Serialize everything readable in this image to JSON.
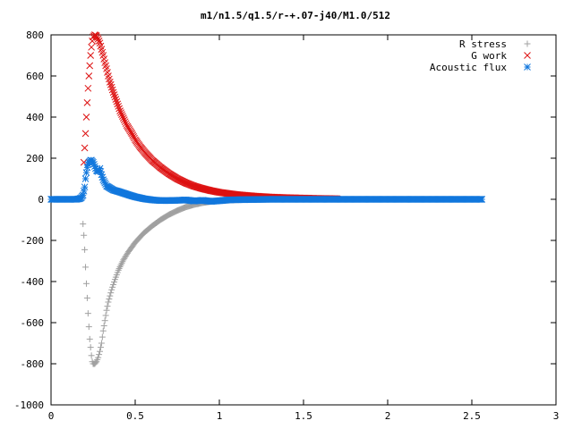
{
  "chart_data": {
    "type": "scatter",
    "title": "m1/n1.5/q1.5/r-+.07-j40/M1.0/512",
    "xlabel": "",
    "ylabel": "",
    "xlim": [
      0,
      3
    ],
    "ylim": [
      -1000,
      800
    ],
    "xticks": [
      {
        "value": 0,
        "label": "0"
      },
      {
        "value": 0.5,
        "label": "0.5"
      },
      {
        "value": 1,
        "label": "1"
      },
      {
        "value": 1.5,
        "label": "1.5"
      },
      {
        "value": 2,
        "label": "2"
      },
      {
        "value": 2.5,
        "label": "2.5"
      },
      {
        "value": 3,
        "label": "3"
      }
    ],
    "yticks": [
      {
        "value": -1000,
        "label": "-1000"
      },
      {
        "value": -800,
        "label": "-800"
      },
      {
        "value": -600,
        "label": "-600"
      },
      {
        "value": -400,
        "label": "-400"
      },
      {
        "value": -200,
        "label": "-200"
      },
      {
        "value": 0,
        "label": "0"
      },
      {
        "value": 200,
        "label": "200"
      },
      {
        "value": 400,
        "label": "400"
      },
      {
        "value": 600,
        "label": "600"
      },
      {
        "value": 800,
        "label": "800"
      }
    ],
    "grid": false,
    "legend_position": "top-right",
    "series": [
      {
        "name": "R stress",
        "marker": "plus",
        "color": "#a0a0a0",
        "points": [
          [
            0.19,
            -120
          ],
          [
            0.195,
            -175
          ],
          [
            0.2,
            -245
          ],
          [
            0.205,
            -330
          ],
          [
            0.21,
            -410
          ],
          [
            0.215,
            -480
          ],
          [
            0.22,
            -555
          ],
          [
            0.225,
            -620
          ],
          [
            0.23,
            -680
          ],
          [
            0.235,
            -720
          ],
          [
            0.24,
            -760
          ],
          [
            0.245,
            -790
          ],
          [
            0.25,
            -800
          ],
          [
            0.26,
            -800
          ],
          [
            0.27,
            -790
          ],
          [
            0.28,
            -770
          ],
          [
            0.29,
            -740
          ],
          [
            0.3,
            -700
          ],
          [
            0.31,
            -640
          ],
          [
            0.32,
            -590
          ],
          [
            0.33,
            -540
          ],
          [
            0.34,
            -500
          ],
          [
            0.36,
            -440
          ],
          [
            0.38,
            -390
          ],
          [
            0.4,
            -345
          ],
          [
            0.43,
            -295
          ],
          [
            0.46,
            -255
          ],
          [
            0.5,
            -210
          ],
          [
            0.55,
            -165
          ],
          [
            0.6,
            -130
          ],
          [
            0.65,
            -100
          ],
          [
            0.7,
            -75
          ],
          [
            0.75,
            -55
          ],
          [
            0.8,
            -38
          ],
          [
            0.85,
            -26
          ],
          [
            0.9,
            -17
          ],
          [
            0.95,
            -11
          ],
          [
            1.0,
            -7
          ],
          [
            1.1,
            -3
          ],
          [
            1.2,
            -1
          ],
          [
            1.3,
            0
          ],
          [
            1.5,
            0
          ],
          [
            1.7,
            0
          ],
          [
            2.0,
            0
          ],
          [
            2.3,
            0
          ],
          [
            2.55,
            0
          ]
        ]
      },
      {
        "name": "G work",
        "marker": "cross",
        "color": "#dd1111",
        "points": [
          [
            0.195,
            180
          ],
          [
            0.2,
            250
          ],
          [
            0.205,
            320
          ],
          [
            0.21,
            400
          ],
          [
            0.215,
            470
          ],
          [
            0.22,
            540
          ],
          [
            0.225,
            600
          ],
          [
            0.23,
            650
          ],
          [
            0.235,
            700
          ],
          [
            0.24,
            740
          ],
          [
            0.245,
            770
          ],
          [
            0.25,
            790
          ],
          [
            0.26,
            800
          ],
          [
            0.27,
            795
          ],
          [
            0.28,
            780
          ],
          [
            0.29,
            760
          ],
          [
            0.3,
            730
          ],
          [
            0.31,
            700
          ],
          [
            0.32,
            665
          ],
          [
            0.33,
            635
          ],
          [
            0.34,
            600
          ],
          [
            0.35,
            570
          ],
          [
            0.37,
            520
          ],
          [
            0.39,
            475
          ],
          [
            0.41,
            430
          ],
          [
            0.43,
            395
          ],
          [
            0.45,
            360
          ],
          [
            0.48,
            320
          ],
          [
            0.5,
            290
          ],
          [
            0.53,
            255
          ],
          [
            0.56,
            225
          ],
          [
            0.6,
            190
          ],
          [
            0.65,
            155
          ],
          [
            0.7,
            125
          ],
          [
            0.75,
            100
          ],
          [
            0.8,
            80
          ],
          [
            0.85,
            64
          ],
          [
            0.9,
            52
          ],
          [
            0.95,
            42
          ],
          [
            1.0,
            34
          ],
          [
            1.1,
            23
          ],
          [
            1.2,
            16
          ],
          [
            1.3,
            11
          ],
          [
            1.4,
            8
          ],
          [
            1.5,
            6
          ],
          [
            1.6,
            4
          ],
          [
            1.7,
            3
          ]
        ]
      },
      {
        "name": "Acoustic flux",
        "marker": "star",
        "color": "#1177dd",
        "points": [
          [
            0.0,
            0
          ],
          [
            0.03,
            0
          ],
          [
            0.06,
            0
          ],
          [
            0.09,
            0
          ],
          [
            0.12,
            0
          ],
          [
            0.15,
            0
          ],
          [
            0.17,
            3
          ],
          [
            0.18,
            8
          ],
          [
            0.19,
            20
          ],
          [
            0.2,
            60
          ],
          [
            0.205,
            100
          ],
          [
            0.21,
            130
          ],
          [
            0.215,
            155
          ],
          [
            0.22,
            170
          ],
          [
            0.225,
            180
          ],
          [
            0.23,
            185
          ],
          [
            0.235,
            190
          ],
          [
            0.24,
            190
          ],
          [
            0.25,
            180
          ],
          [
            0.26,
            160
          ],
          [
            0.27,
            140
          ],
          [
            0.28,
            135
          ],
          [
            0.29,
            150
          ],
          [
            0.3,
            120
          ],
          [
            0.31,
            95
          ],
          [
            0.32,
            80
          ],
          [
            0.33,
            65
          ],
          [
            0.35,
            55
          ],
          [
            0.37,
            45
          ],
          [
            0.4,
            38
          ],
          [
            0.43,
            30
          ],
          [
            0.46,
            22
          ],
          [
            0.5,
            12
          ],
          [
            0.55,
            3
          ],
          [
            0.6,
            -3
          ],
          [
            0.65,
            -6
          ],
          [
            0.7,
            -6
          ],
          [
            0.75,
            -5
          ],
          [
            0.8,
            -3
          ],
          [
            0.85,
            -8
          ],
          [
            0.9,
            -5
          ],
          [
            0.95,
            -10
          ],
          [
            1.0,
            -7
          ],
          [
            1.05,
            -3
          ],
          [
            1.1,
            -2
          ],
          [
            1.2,
            -1
          ],
          [
            1.3,
            0
          ],
          [
            1.4,
            0
          ],
          [
            1.5,
            0
          ],
          [
            1.6,
            0
          ],
          [
            1.7,
            0
          ],
          [
            1.8,
            0
          ],
          [
            1.9,
            0
          ],
          [
            2.0,
            0
          ],
          [
            2.1,
            0
          ],
          [
            2.2,
            0
          ],
          [
            2.3,
            0
          ],
          [
            2.4,
            0
          ],
          [
            2.5,
            0
          ],
          [
            2.56,
            0
          ]
        ]
      }
    ]
  }
}
